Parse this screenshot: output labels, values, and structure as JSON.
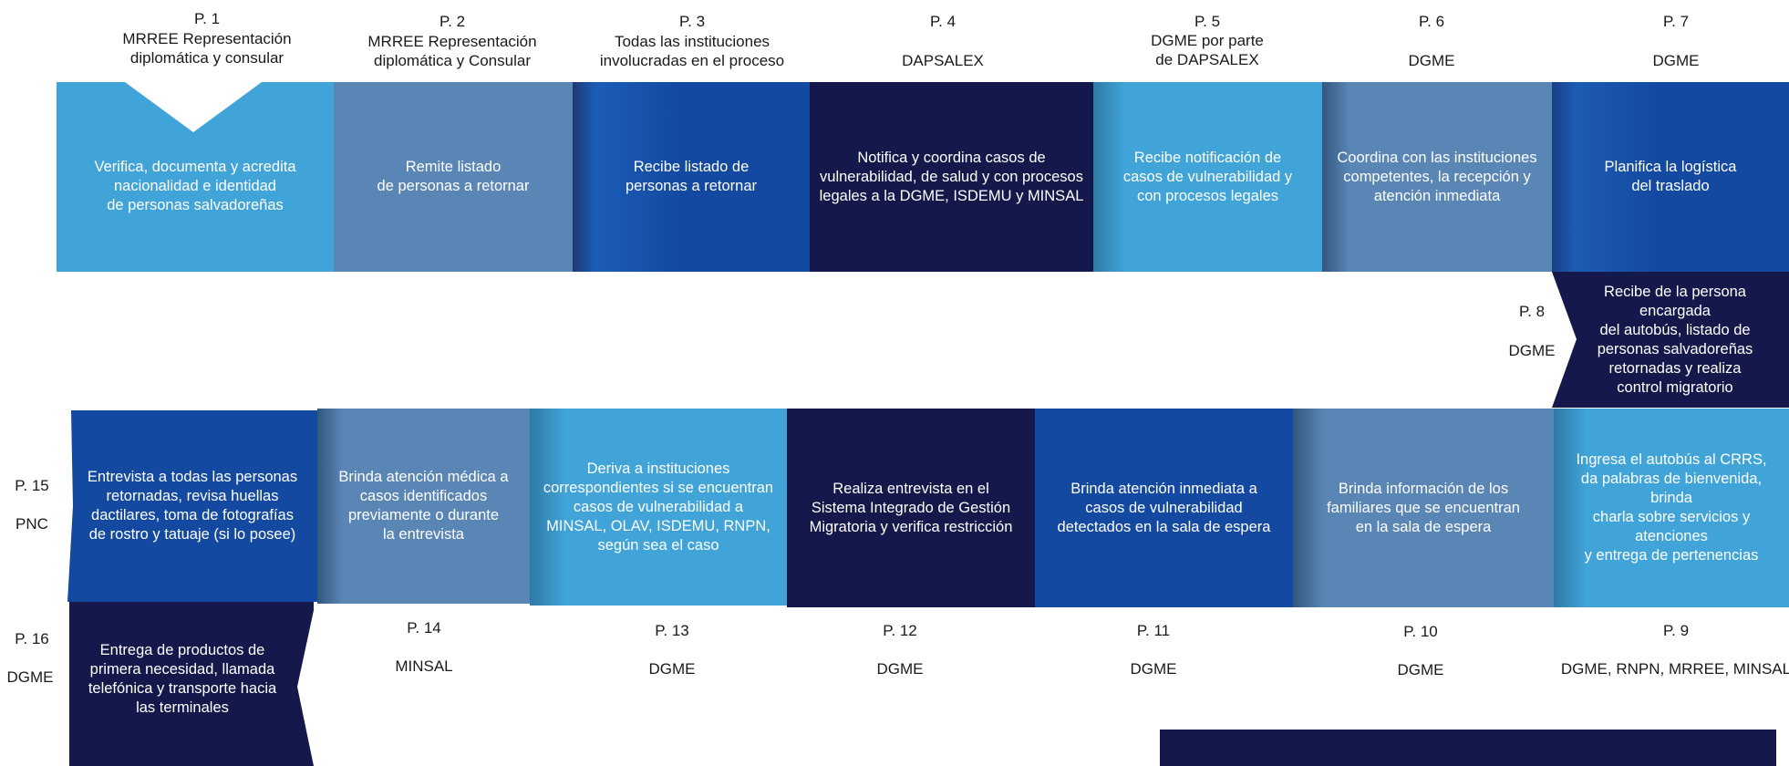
{
  "row1": [
    {
      "step": "P. 1",
      "actor": "MRREE Representación\ndiplomática y consular",
      "text": "Verifica, documenta y acredita\nnacionalidad e identidad\nde personas salvadoreñas"
    },
    {
      "step": "P. 2",
      "actor": "MRREE Representación\ndiplomática y Consular",
      "text": "Remite listado\nde personas a retornar"
    },
    {
      "step": "P. 3",
      "actor": "Todas las instituciones\ninvolucradas en el proceso",
      "text": "Recibe listado de\npersonas a retornar"
    },
    {
      "step": "P. 4",
      "actor": "DAPSALEX",
      "text": "Notifica y coordina casos de\nvulnerabilidad, de salud y con procesos\nlegales a la DGME, ISDEMU y MINSAL"
    },
    {
      "step": "P. 5",
      "actor": "DGME por parte\nde DAPSALEX",
      "text": "Recibe notificación de\ncasos de vulnerabilidad y\ncon procesos legales"
    },
    {
      "step": "P. 6",
      "actor": "DGME",
      "text": "Coordina con las instituciones\ncompetentes, la recepción y\natención inmediata"
    },
    {
      "step": "P. 7",
      "actor": "DGME",
      "text": "Planifica la logística\ndel traslado"
    }
  ],
  "step8": {
    "step": "P. 8",
    "actor": "DGME",
    "text": "Recibe de la persona encargada\ndel autobús, listado de\npersonas salvadoreñas\nretornadas y realiza\ncontrol migratorio"
  },
  "row2": [
    {
      "step": "P. 15",
      "actor": "PNC",
      "text": "Entrevista a todas las personas\nretornadas, revisa huellas\ndactilares, toma de fotografías\nde rostro y tatuaje (si lo posee)"
    },
    {
      "step": "P. 14",
      "actor": "MINSAL",
      "text": "Brinda atención médica a\ncasos identificados\npreviamente o durante\nla entrevista"
    },
    {
      "step": "P. 13",
      "actor": "DGME",
      "text": "Deriva a instituciones\ncorrespondientes si se encuentran\ncasos de vulnerabilidad a\nMINSAL, OLAV, ISDEMU, RNPN,\nsegún sea el caso"
    },
    {
      "step": "P. 12",
      "actor": "DGME",
      "text": "Realiza entrevista en el\nSistema Integrado de Gestión\nMigratoria y verifica restricción"
    },
    {
      "step": "P. 11",
      "actor": "DGME",
      "text": "Brinda atención inmediata a\ncasos de vulnerabilidad\ndetectados en la sala de espera"
    },
    {
      "step": "P. 10",
      "actor": "DGME",
      "text": "Brinda información de los\nfamiliares que se encuentran\nen la sala de espera"
    },
    {
      "step": "P. 9",
      "actor": "DGME, RNPN, MRREE, MINSAL",
      "text": "Ingresa el autobús al CRRS,\nda palabras de bienvenida, brinda\ncharla sobre servicios y atenciones\ny entrega de pertenencias"
    }
  ],
  "step16": {
    "step": "P. 16",
    "actor": "DGME",
    "text": "Entrega de productos de\nprimera necesidad, llamada\ntelefónica y transporte hacia\nlas terminales"
  },
  "colors": {
    "light": "#41a4d8",
    "steel": "#5a86b6",
    "blue": "#1349a0",
    "navy": "#15184a"
  }
}
